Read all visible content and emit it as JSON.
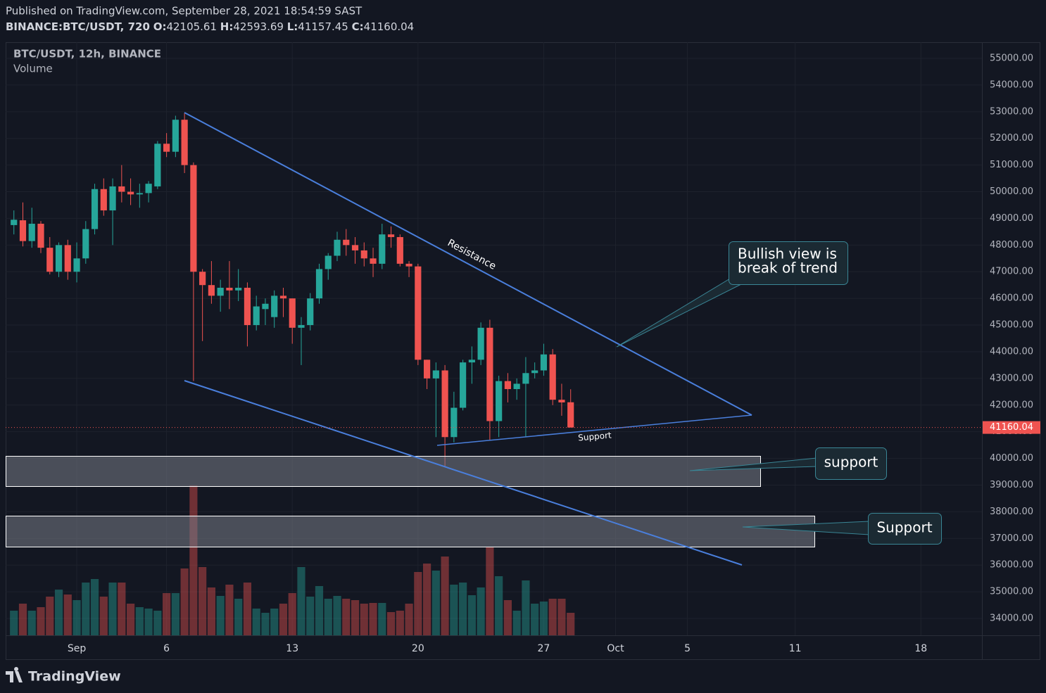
{
  "published": "Published on TradingView.com, September 28, 2021 18:54:59 SAST",
  "symbol": "BINANCE:BTC/USDT, 720",
  "ohlc_labels": [
    "O:",
    "H:",
    "L:",
    "C:"
  ],
  "brand": "TradingView",
  "chart_data": {
    "type": "candlestick",
    "legend_title": "BTC/USDT, 12h, BINANCE",
    "legend_volume": "Volume",
    "up_color": "#26a69a",
    "down_color": "#ef5350",
    "grid": true,
    "x": [
      -2.5,
      -2,
      -1.5,
      -1,
      -0.5,
      0,
      0.5,
      1,
      1.5,
      2,
      2.5,
      3,
      3.5,
      4,
      4.5,
      5,
      5.5,
      6,
      6.5,
      7,
      7.5,
      8,
      8.5,
      9,
      9.5,
      10,
      10.5,
      11,
      11.5,
      12,
      12.5,
      13,
      13.5,
      14,
      14.5,
      15,
      15.5,
      16,
      16.5,
      17,
      17.5,
      18,
      18.5,
      19,
      19.5,
      20,
      20.5,
      21,
      21.5,
      22,
      22.5,
      23,
      23.5,
      24,
      24.5,
      25,
      25.5,
      26,
      26.5,
      27,
      27.5,
      28,
      28.5
    ],
    "open": [
      48750,
      48930,
      48150,
      48800,
      47900,
      47000,
      48000,
      47000,
      47500,
      48600,
      50100,
      49300,
      50200,
      50000,
      49900,
      49950,
      50200,
      51800,
      51500,
      52700,
      51000,
      47000,
      46500,
      46100,
      46400,
      46300,
      46400,
      45000,
      45600,
      45300,
      46100,
      46000,
      44900,
      45000,
      46000,
      47100,
      47600,
      48200,
      48000,
      47800,
      47500,
      47300,
      48400,
      48300,
      47300,
      47200,
      43700,
      43000,
      43300,
      40800,
      41900,
      43600,
      43700,
      44900,
      41400,
      42900,
      42600,
      42800,
      43200,
      43300,
      43900,
      42200,
      42105.61
    ],
    "high": [
      49300,
      49600,
      49400,
      48900,
      48300,
      48100,
      48200,
      48100,
      48900,
      50300,
      50500,
      50500,
      51000,
      50500,
      50300,
      50400,
      51900,
      52200,
      52850,
      52950,
      51100,
      47100,
      47400,
      46700,
      47400,
      47100,
      46600,
      46100,
      46000,
      46300,
      46400,
      46000,
      45300,
      46200,
      47300,
      47700,
      48500,
      48600,
      48300,
      48100,
      47900,
      48800,
      48700,
      48400,
      47400,
      47300,
      43700,
      43600,
      43500,
      42500,
      43700,
      44200,
      45100,
      45200,
      43100,
      43200,
      43000,
      43800,
      43600,
      44300,
      44100,
      42800,
      42593.69
    ],
    "low": [
      48400,
      47950,
      47900,
      47700,
      46900,
      46800,
      46700,
      46600,
      47300,
      48400,
      49100,
      48000,
      49600,
      49500,
      49400,
      49600,
      50100,
      51300,
      51300,
      50700,
      42900,
      44400,
      45800,
      45500,
      45600,
      45900,
      44200,
      44800,
      45000,
      44900,
      45300,
      44300,
      43500,
      44800,
      45800,
      46700,
      47400,
      47600,
      47300,
      47200,
      46800,
      47100,
      47900,
      47200,
      46800,
      43500,
      42600,
      40800,
      39700,
      40600,
      41800,
      42800,
      43500,
      40700,
      40800,
      42100,
      42200,
      40800,
      43000,
      43100,
      42000,
      41600,
      41157.45
    ],
    "close": [
      48950,
      48150,
      48800,
      47900,
      47000,
      48000,
      47000,
      47500,
      48600,
      50100,
      49300,
      50200,
      50000,
      49900,
      49950,
      50300,
      51800,
      51500,
      52700,
      51000,
      47000,
      46500,
      46100,
      46400,
      46300,
      46400,
      45000,
      45700,
      45800,
      46100,
      46000,
      44900,
      45000,
      46000,
      47100,
      47600,
      48200,
      48000,
      47800,
      47500,
      47300,
      48400,
      48300,
      47300,
      47200,
      43700,
      43000,
      43300,
      40800,
      41900,
      43600,
      43700,
      44900,
      41400,
      42900,
      42600,
      42800,
      43200,
      43300,
      43900,
      42200,
      42100,
      41160.04
    ],
    "volume": [
      35,
      45,
      35,
      40,
      55,
      65,
      58,
      50,
      75,
      80,
      55,
      75,
      75,
      45,
      40,
      38,
      35,
      60,
      60,
      95,
      213,
      97,
      68,
      56,
      72,
      52,
      75,
      38,
      32,
      38,
      45,
      60,
      97,
      55,
      70,
      52,
      56,
      52,
      50,
      45,
      46,
      46,
      33,
      35,
      45,
      90,
      102,
      92,
      112,
      72,
      75,
      57,
      68,
      125,
      84,
      50,
      35,
      78,
      45,
      48,
      52,
      52,
      32
    ],
    "xlim": [
      -2.96,
      51.4
    ],
    "xticks": [
      {
        "value": 1,
        "label": "Sep"
      },
      6,
      13,
      20,
      27,
      {
        "value": 31,
        "label": "Oct"
      },
      {
        "value": 35,
        "label": "5"
      },
      {
        "value": 41,
        "label": "11"
      },
      {
        "value": 48,
        "label": "18"
      }
    ],
    "ylim": [
      33367,
      55607
    ],
    "yticks": [
      {
        "value": 34000,
        "label": "34000.00"
      },
      {
        "value": 35000,
        "label": "35000.00"
      },
      {
        "value": 36000,
        "label": "36000.00"
      },
      {
        "value": 37000,
        "label": "37000.00"
      },
      {
        "value": 38000,
        "label": "38000.00"
      },
      {
        "value": 39000,
        "label": "39000.00"
      },
      {
        "value": 40000,
        "label": "40000.00"
      },
      {
        "value": 41000,
        "label": "41000.00"
      },
      {
        "value": 42000,
        "label": "42000.00"
      },
      {
        "value": 43000,
        "label": "43000.00"
      },
      {
        "value": 44000,
        "label": "44000.00"
      },
      {
        "value": 45000,
        "label": "45000.00"
      },
      {
        "value": 46000,
        "label": "46000.00"
      },
      {
        "value": 47000,
        "label": "47000.00"
      },
      {
        "value": 48000,
        "label": "48000.00"
      },
      {
        "value": 49000,
        "label": "49000.00"
      },
      {
        "value": 50000,
        "label": "50000.00"
      },
      {
        "value": 51000,
        "label": "51000.00"
      },
      {
        "value": 52000,
        "label": "52000.00"
      },
      {
        "value": 53000,
        "label": "53000.00"
      },
      {
        "value": 54000,
        "label": "54000.00"
      },
      {
        "value": 55000,
        "label": "55000.00"
      }
    ],
    "annotations": {
      "resistance": "Resistance",
      "support_line": "Support",
      "bullish": [
        "Bullish view is",
        "break of trend"
      ],
      "zone_upper": "support",
      "zone_lower": "Support"
    }
  }
}
